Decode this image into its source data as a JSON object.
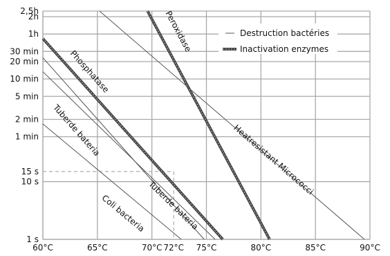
{
  "chart_data": {
    "type": "line",
    "title": "",
    "xlabel": "",
    "ylabel": "",
    "x_ticks": [
      {
        "value": 60,
        "label": "60°C"
      },
      {
        "value": 65,
        "label": "65°C"
      },
      {
        "value": 70,
        "label": "70°C"
      },
      {
        "value": 72,
        "label": "72°C"
      },
      {
        "value": 75,
        "label": "75°C"
      },
      {
        "value": 80,
        "label": "80°C"
      },
      {
        "value": 85,
        "label": "85°C"
      },
      {
        "value": 90,
        "label": "90°C"
      }
    ],
    "xlim": [
      60,
      90
    ],
    "y_scale": "log",
    "y_unit": "seconds",
    "ylim": [
      1,
      9000
    ],
    "y_ticks": [
      {
        "value": 9000,
        "label": "2,5h"
      },
      {
        "value": 7200,
        "label": "2h"
      },
      {
        "value": 3600,
        "label": "1h"
      },
      {
        "value": 1800,
        "label": "30 min"
      },
      {
        "value": 1200,
        "label": "20 min"
      },
      {
        "value": 600,
        "label": "10 min"
      },
      {
        "value": 300,
        "label": "5 min"
      },
      {
        "value": 120,
        "label": "2 min"
      },
      {
        "value": 60,
        "label": "1 min"
      },
      {
        "value": 15,
        "label": "15 s"
      },
      {
        "value": 10,
        "label": "10 s"
      },
      {
        "value": 1,
        "label": "1 s"
      }
    ],
    "reference_point": {
      "x": 72,
      "y": 15
    },
    "legend": {
      "placement": "top-right",
      "entries": [
        {
          "label": "Destruction bactéries",
          "style": "thin"
        },
        {
          "label": "Inactivation enzymes",
          "style": "thick"
        }
      ]
    },
    "series": [
      {
        "name": "Peroxidase",
        "style": "thick",
        "x": [
          69.6,
          80.8
        ],
        "y": [
          9000,
          1
        ]
      },
      {
        "name": "Phosphatase",
        "style": "thick",
        "x": [
          60,
          76.5
        ],
        "y": [
          3000,
          1
        ]
      },
      {
        "name": "Heatresistant Micrococci",
        "style": "thin",
        "x": [
          65.2,
          89.5
        ],
        "y": [
          9000,
          1
        ]
      },
      {
        "name": "Tuberde bateria",
        "style": "thin",
        "x": [
          60,
          74.8
        ],
        "y": [
          1400,
          1
        ]
      },
      {
        "name": "Tuberde bateria",
        "style": "thin",
        "x": [
          60,
          75.8
        ],
        "y": [
          800,
          1
        ]
      },
      {
        "name": "Coli bacteria",
        "style": "thin",
        "x": [
          60,
          72.7
        ],
        "y": [
          100,
          1
        ]
      }
    ],
    "series_labels": [
      {
        "text": "Peroxidase",
        "x": 72.2,
        "y": 3800
      },
      {
        "text": "Phosphatase",
        "x": 64.1,
        "y": 750
      },
      {
        "text": "Heatresistant Micrococci",
        "x": 81.0,
        "y": 22
      },
      {
        "text": "Tuberde bateria",
        "x": 62.9,
        "y": 72
      },
      {
        "text": "Tuberde bateria",
        "x": 71.8,
        "y": 3.6
      },
      {
        "text": "Coli bacteria",
        "x": 67.2,
        "y": 2.6
      }
    ]
  }
}
